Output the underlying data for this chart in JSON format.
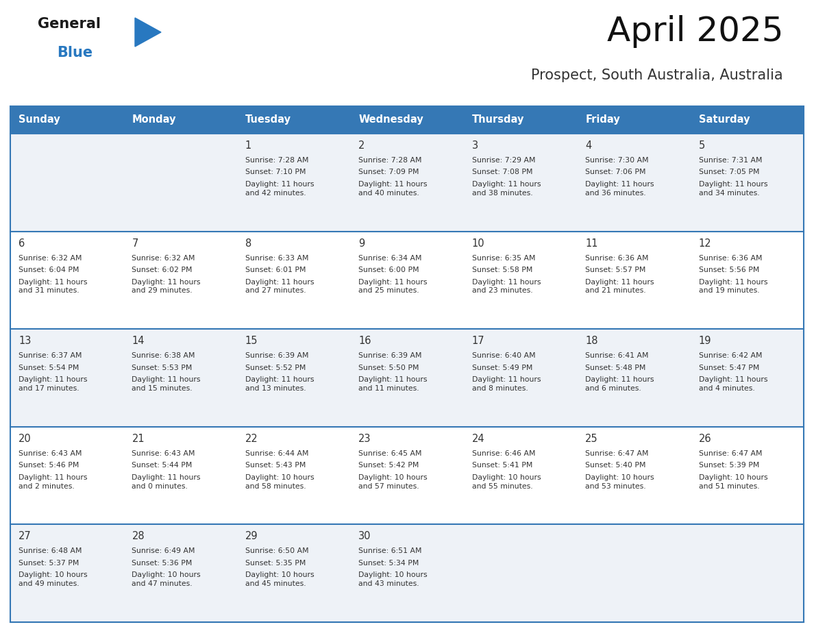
{
  "title": "April 2025",
  "subtitle": "Prospect, South Australia, Australia",
  "header_color": "#3578b5",
  "header_text_color": "#ffffff",
  "day_names": [
    "Sunday",
    "Monday",
    "Tuesday",
    "Wednesday",
    "Thursday",
    "Friday",
    "Saturday"
  ],
  "alt_row_color": "#eef2f7",
  "white_row_color": "#ffffff",
  "border_color": "#3578b5",
  "text_color": "#333333",
  "logo_general_color": "#1a1a1a",
  "logo_blue_color": "#2878c0",
  "weeks": [
    [
      {
        "day": "",
        "sunrise": "",
        "sunset": "",
        "daylight": ""
      },
      {
        "day": "",
        "sunrise": "",
        "sunset": "",
        "daylight": ""
      },
      {
        "day": "1",
        "sunrise": "7:28 AM",
        "sunset": "7:10 PM",
        "daylight": "11 hours\nand 42 minutes."
      },
      {
        "day": "2",
        "sunrise": "7:28 AM",
        "sunset": "7:09 PM",
        "daylight": "11 hours\nand 40 minutes."
      },
      {
        "day": "3",
        "sunrise": "7:29 AM",
        "sunset": "7:08 PM",
        "daylight": "11 hours\nand 38 minutes."
      },
      {
        "day": "4",
        "sunrise": "7:30 AM",
        "sunset": "7:06 PM",
        "daylight": "11 hours\nand 36 minutes."
      },
      {
        "day": "5",
        "sunrise": "7:31 AM",
        "sunset": "7:05 PM",
        "daylight": "11 hours\nand 34 minutes."
      }
    ],
    [
      {
        "day": "6",
        "sunrise": "6:32 AM",
        "sunset": "6:04 PM",
        "daylight": "11 hours\nand 31 minutes."
      },
      {
        "day": "7",
        "sunrise": "6:32 AM",
        "sunset": "6:02 PM",
        "daylight": "11 hours\nand 29 minutes."
      },
      {
        "day": "8",
        "sunrise": "6:33 AM",
        "sunset": "6:01 PM",
        "daylight": "11 hours\nand 27 minutes."
      },
      {
        "day": "9",
        "sunrise": "6:34 AM",
        "sunset": "6:00 PM",
        "daylight": "11 hours\nand 25 minutes."
      },
      {
        "day": "10",
        "sunrise": "6:35 AM",
        "sunset": "5:58 PM",
        "daylight": "11 hours\nand 23 minutes."
      },
      {
        "day": "11",
        "sunrise": "6:36 AM",
        "sunset": "5:57 PM",
        "daylight": "11 hours\nand 21 minutes."
      },
      {
        "day": "12",
        "sunrise": "6:36 AM",
        "sunset": "5:56 PM",
        "daylight": "11 hours\nand 19 minutes."
      }
    ],
    [
      {
        "day": "13",
        "sunrise": "6:37 AM",
        "sunset": "5:54 PM",
        "daylight": "11 hours\nand 17 minutes."
      },
      {
        "day": "14",
        "sunrise": "6:38 AM",
        "sunset": "5:53 PM",
        "daylight": "11 hours\nand 15 minutes."
      },
      {
        "day": "15",
        "sunrise": "6:39 AM",
        "sunset": "5:52 PM",
        "daylight": "11 hours\nand 13 minutes."
      },
      {
        "day": "16",
        "sunrise": "6:39 AM",
        "sunset": "5:50 PM",
        "daylight": "11 hours\nand 11 minutes."
      },
      {
        "day": "17",
        "sunrise": "6:40 AM",
        "sunset": "5:49 PM",
        "daylight": "11 hours\nand 8 minutes."
      },
      {
        "day": "18",
        "sunrise": "6:41 AM",
        "sunset": "5:48 PM",
        "daylight": "11 hours\nand 6 minutes."
      },
      {
        "day": "19",
        "sunrise": "6:42 AM",
        "sunset": "5:47 PM",
        "daylight": "11 hours\nand 4 minutes."
      }
    ],
    [
      {
        "day": "20",
        "sunrise": "6:43 AM",
        "sunset": "5:46 PM",
        "daylight": "11 hours\nand 2 minutes."
      },
      {
        "day": "21",
        "sunrise": "6:43 AM",
        "sunset": "5:44 PM",
        "daylight": "11 hours\nand 0 minutes."
      },
      {
        "day": "22",
        "sunrise": "6:44 AM",
        "sunset": "5:43 PM",
        "daylight": "10 hours\nand 58 minutes."
      },
      {
        "day": "23",
        "sunrise": "6:45 AM",
        "sunset": "5:42 PM",
        "daylight": "10 hours\nand 57 minutes."
      },
      {
        "day": "24",
        "sunrise": "6:46 AM",
        "sunset": "5:41 PM",
        "daylight": "10 hours\nand 55 minutes."
      },
      {
        "day": "25",
        "sunrise": "6:47 AM",
        "sunset": "5:40 PM",
        "daylight": "10 hours\nand 53 minutes."
      },
      {
        "day": "26",
        "sunrise": "6:47 AM",
        "sunset": "5:39 PM",
        "daylight": "10 hours\nand 51 minutes."
      }
    ],
    [
      {
        "day": "27",
        "sunrise": "6:48 AM",
        "sunset": "5:37 PM",
        "daylight": "10 hours\nand 49 minutes."
      },
      {
        "day": "28",
        "sunrise": "6:49 AM",
        "sunset": "5:36 PM",
        "daylight": "10 hours\nand 47 minutes."
      },
      {
        "day": "29",
        "sunrise": "6:50 AM",
        "sunset": "5:35 PM",
        "daylight": "10 hours\nand 45 minutes."
      },
      {
        "day": "30",
        "sunrise": "6:51 AM",
        "sunset": "5:34 PM",
        "daylight": "10 hours\nand 43 minutes."
      },
      {
        "day": "",
        "sunrise": "",
        "sunset": "",
        "daylight": ""
      },
      {
        "day": "",
        "sunrise": "",
        "sunset": "",
        "daylight": ""
      },
      {
        "day": "",
        "sunrise": "",
        "sunset": "",
        "daylight": ""
      }
    ]
  ]
}
